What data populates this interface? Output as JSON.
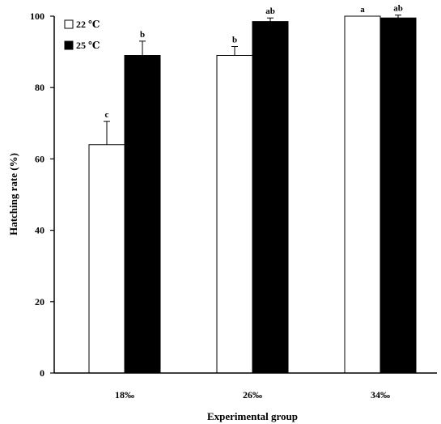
{
  "chart_data": {
    "type": "bar",
    "xlabel": "Experimental group",
    "ylabel": "Hatching rate (%)",
    "ylim": [
      0,
      100
    ],
    "yticks": [
      0,
      20,
      40,
      60,
      80,
      100
    ],
    "grid": false,
    "legend_position": "top-left",
    "categories": [
      "18‰",
      "26‰",
      "34‰"
    ],
    "series": [
      {
        "name": "22 ℃",
        "color": "#ffffff",
        "values": [
          64,
          89,
          100
        ],
        "errors": [
          6.5,
          2.5,
          0
        ],
        "sig": [
          "c",
          "b",
          "a"
        ]
      },
      {
        "name": "25 ℃",
        "color": "#000000",
        "values": [
          89,
          98.5,
          99.5
        ],
        "errors": [
          4,
          1,
          0.8
        ],
        "sig": [
          "b",
          "ab",
          "ab"
        ]
      }
    ]
  }
}
